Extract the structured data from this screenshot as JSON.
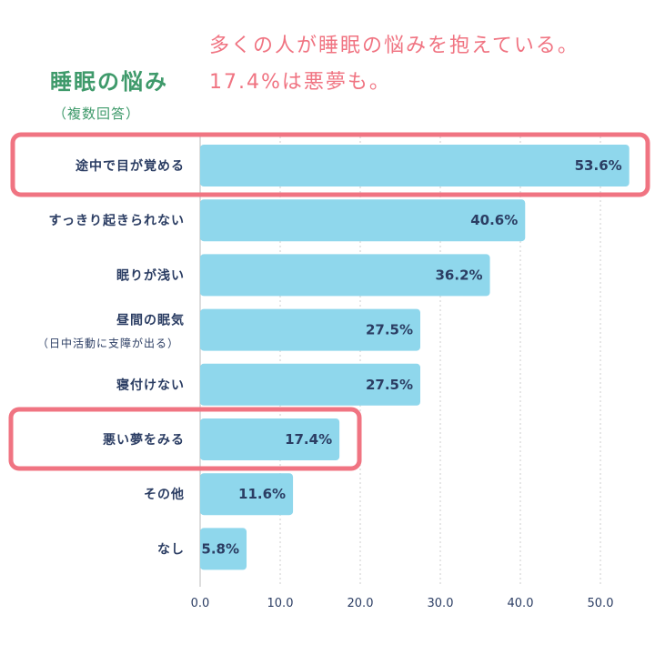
{
  "headline": {
    "line1": "多くの人が睡眠の悩みを抱えている。",
    "line2": "17.4%は悪夢も。"
  },
  "colors": {
    "bar": "#8fd7ec",
    "highlight": "#f07482",
    "title": "#3f9a6b",
    "text": "#2b3d63"
  },
  "chart_data": {
    "type": "bar",
    "orientation": "horizontal",
    "title": "睡眠の悩み",
    "subtitle": "（複数回答）",
    "categories": [
      "途中で目が覚める",
      "すっきり起きられない",
      "眠りが浅い",
      "昼間の眠気",
      "寝付けない",
      "悪い夢をみる",
      "その他",
      "なし"
    ],
    "category_notes": [
      "",
      "",
      "",
      "（日中活動に支障が出る）",
      "",
      "",
      "",
      ""
    ],
    "values": [
      53.6,
      40.6,
      36.2,
      27.5,
      27.5,
      17.4,
      11.6,
      5.8
    ],
    "value_labels": [
      "53.6%",
      "40.6%",
      "36.2%",
      "27.5%",
      "27.5%",
      "17.4%",
      "11.6%",
      "5.8%"
    ],
    "highlighted": [
      0,
      5
    ],
    "xlim": [
      0,
      50
    ],
    "xticks": [
      "0.0",
      "10.0",
      "20.0",
      "30.0",
      "40.0",
      "50.0"
    ],
    "grid": true,
    "unit": "%"
  }
}
